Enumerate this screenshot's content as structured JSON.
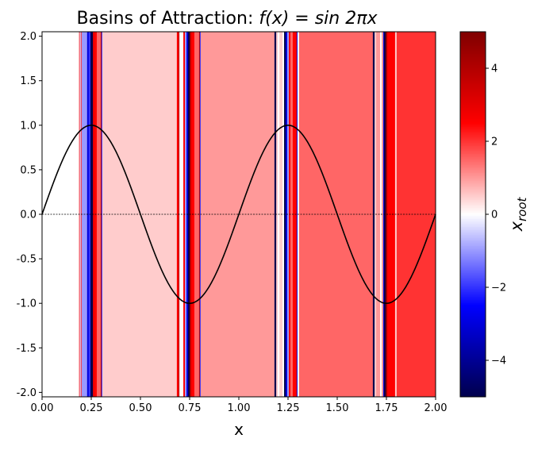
{
  "chart_data": {
    "type": "heatmap",
    "title_prefix": "Basins of Attraction: ",
    "title_math": "f(x) = sin 2πx",
    "xlabel": "x",
    "ylabel": "",
    "colorbar_label_main": "x",
    "colorbar_label_sub": "root",
    "xlim": [
      0,
      2
    ],
    "ylim": [
      -2.05,
      2.05
    ],
    "xticks": [
      "0.00",
      "0.25",
      "0.50",
      "0.75",
      "1.00",
      "1.25",
      "1.50",
      "1.75",
      "2.00"
    ],
    "yticks": [
      "2.0",
      "1.5",
      "1.0",
      "0.5",
      "0.0",
      "-0.5",
      "-1.0",
      "-1.5",
      "-2.0"
    ],
    "colorbar_range": [
      -5,
      5
    ],
    "colorbar_ticks": [
      "4",
      "2",
      "0",
      "-2",
      "-4"
    ],
    "colormap": "seismic",
    "curve": {
      "function": "sin(2πx)",
      "color": "#000000"
    },
    "zero_line": {
      "y": 0,
      "style": "dashed",
      "color": "#000000"
    },
    "basins": [
      {
        "x0": 0,
        "x1": 0.188,
        "root": 0
      },
      {
        "x0": 0.188,
        "x1": 0.192,
        "root": 2
      },
      {
        "x0": 0.192,
        "x1": 0.197,
        "root": -0.5
      },
      {
        "x0": 0.197,
        "x1": 0.201,
        "root": 2
      },
      {
        "x0": 0.201,
        "x1": 0.229,
        "root": -1
      },
      {
        "x0": 0.229,
        "x1": 0.237,
        "root": -3
      },
      {
        "x0": 0.237,
        "x1": 0.246,
        "root": -2
      },
      {
        "x0": 0.246,
        "x1": 0.258,
        "root": -5
      },
      {
        "x0": 0.258,
        "x1": 0.266,
        "root": 3
      },
      {
        "x0": 0.266,
        "x1": 0.278,
        "root": 2.5
      },
      {
        "x0": 0.278,
        "x1": 0.298,
        "root": 1.5
      },
      {
        "x0": 0.298,
        "x1": 0.302,
        "root": 4
      },
      {
        "x0": 0.302,
        "x1": 0.306,
        "root": -2
      },
      {
        "x0": 0.306,
        "x1": 0.685,
        "root": 0.5
      },
      {
        "x0": 0.685,
        "x1": 0.694,
        "root": 2.5
      },
      {
        "x0": 0.694,
        "x1": 0.698,
        "root": 4
      },
      {
        "x0": 0.698,
        "x1": 0.718,
        "root": 0
      },
      {
        "x0": 0.718,
        "x1": 0.726,
        "root": 2.5
      },
      {
        "x0": 0.726,
        "x1": 0.734,
        "root": -1
      },
      {
        "x0": 0.734,
        "x1": 0.742,
        "root": -3
      },
      {
        "x0": 0.742,
        "x1": 0.75,
        "root": -5
      },
      {
        "x0": 0.75,
        "x1": 0.758,
        "root": 4
      },
      {
        "x0": 0.758,
        "x1": 0.774,
        "root": 2.5
      },
      {
        "x0": 0.774,
        "x1": 0.798,
        "root": 1.5
      },
      {
        "x0": 0.798,
        "x1": 0.802,
        "root": 4
      },
      {
        "x0": 0.802,
        "x1": 0.806,
        "root": -2
      },
      {
        "x0": 0.806,
        "x1": 1.181,
        "root": 1
      },
      {
        "x0": 1.181,
        "x1": 1.19,
        "root": -5
      },
      {
        "x0": 1.19,
        "x1": 1.198,
        "root": 0.5
      },
      {
        "x0": 1.198,
        "x1": 1.206,
        "root": 0
      },
      {
        "x0": 1.206,
        "x1": 1.222,
        "root": 0.5
      },
      {
        "x0": 1.222,
        "x1": 1.23,
        "root": 0
      },
      {
        "x0": 1.23,
        "x1": 1.238,
        "root": -5
      },
      {
        "x0": 1.238,
        "x1": 1.246,
        "root": -3
      },
      {
        "x0": 1.246,
        "x1": 1.254,
        "root": -1
      },
      {
        "x0": 1.254,
        "x1": 1.262,
        "root": 2.5
      },
      {
        "x0": 1.262,
        "x1": 1.274,
        "root": 1.5
      },
      {
        "x0": 1.274,
        "x1": 1.294,
        "root": 2.5
      },
      {
        "x0": 1.294,
        "x1": 1.298,
        "root": -3
      },
      {
        "x0": 1.298,
        "x1": 1.306,
        "root": 0
      },
      {
        "x0": 1.306,
        "x1": 1.681,
        "root": 1.5
      },
      {
        "x0": 1.681,
        "x1": 1.69,
        "root": -5
      },
      {
        "x0": 1.69,
        "x1": 1.698,
        "root": 0.5
      },
      {
        "x0": 1.698,
        "x1": 1.718,
        "root": 1
      },
      {
        "x0": 1.718,
        "x1": 1.726,
        "root": 0
      },
      {
        "x0": 1.726,
        "x1": 1.734,
        "root": 1
      },
      {
        "x0": 1.734,
        "x1": 1.738,
        "root": -3
      },
      {
        "x0": 1.738,
        "x1": 1.746,
        "root": -5
      },
      {
        "x0": 1.746,
        "x1": 1.754,
        "root": 4.5
      },
      {
        "x0": 1.754,
        "x1": 1.794,
        "root": 2.5
      },
      {
        "x0": 1.794,
        "x1": 1.802,
        "root": 0.5
      },
      {
        "x0": 1.802,
        "x1": 2,
        "root": 2
      }
    ]
  }
}
